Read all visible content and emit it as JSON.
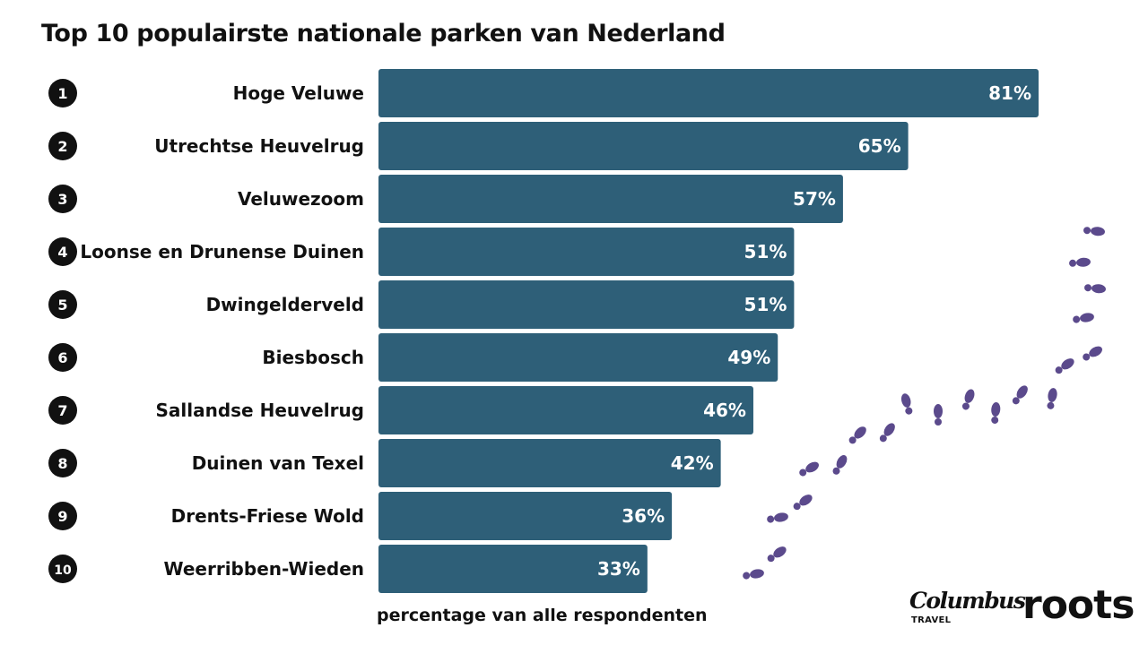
{
  "title": "Top 10 populairste nationale parken van Nederland",
  "colors": {
    "bar": "#2e5f78",
    "footprint": "#5b4a8c",
    "rank_circle": "#111111"
  },
  "logos": {
    "columbus": "Columbus",
    "travel": "TRAVEL",
    "roots": "roots"
  },
  "chart_data": {
    "type": "bar",
    "orientation": "horizontal",
    "title": "Top 10 populairste nationale parken van Nederland",
    "xlabel": "percentage van alle respondenten",
    "ylabel": "",
    "unit": "%",
    "xlim": [
      0,
      100
    ],
    "grid": false,
    "ranks": [
      "1",
      "2",
      "3",
      "4",
      "5",
      "6",
      "7",
      "8",
      "9",
      "10"
    ],
    "categories": [
      "Hoge Veluwe",
      "Utrechtse Heuvelrug",
      "Veluwezoom",
      "Loonse en Drunense Duinen",
      "Dwingelderveld",
      "Biesbosch",
      "Sallandse Heuvelrug",
      "Duinen van Texel",
      "Drents-Friese Wold",
      "Weerribben-Wieden"
    ],
    "values": [
      81,
      65,
      57,
      51,
      51,
      49,
      46,
      42,
      36,
      33
    ]
  }
}
